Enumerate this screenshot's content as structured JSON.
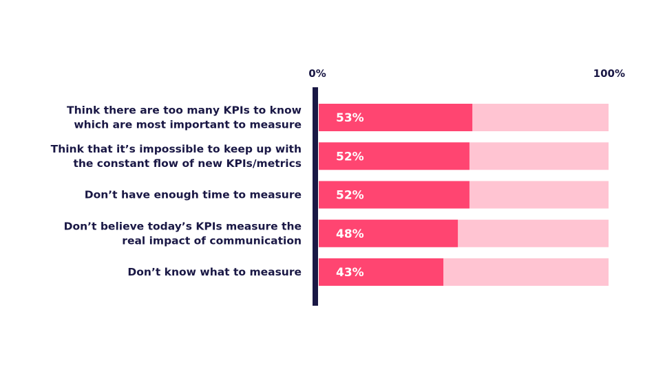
{
  "chart_data": {
    "type": "bar",
    "orientation": "horizontal",
    "stacked_to_total": true,
    "categories": [
      [
        "Think there are too many KPIs to know",
        "which are most important to measure"
      ],
      [
        "Think that it’s impossible to keep up with",
        "the constant flow of new KPIs/metrics"
      ],
      [
        "Don’t have enough time to measure"
      ],
      [
        "Don’t believe today’s KPIs measure the",
        "real impact of communication"
      ],
      [
        "Don’t know what to measure"
      ]
    ],
    "values": [
      53,
      52,
      52,
      48,
      43
    ],
    "value_labels": [
      "53%",
      "52%",
      "52%",
      "48%",
      "43%"
    ],
    "xlim": [
      0,
      100
    ],
    "ticks": [
      {
        "value": 0,
        "label": "0%"
      },
      {
        "value": 100,
        "label": "100%"
      }
    ],
    "grid": false,
    "legend": "none",
    "colors": {
      "bar": "#ff4571",
      "track": "#ffc4d2",
      "axis": "#1a1845",
      "text": "#1a1845",
      "value_text": "#ffffff"
    }
  }
}
